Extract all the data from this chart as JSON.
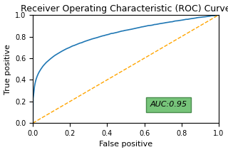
{
  "title": "Receiver Operating Characteristic (ROC) Curve",
  "xlabel": "False positive",
  "ylabel": "True positive",
  "auc_text": "AUC:0.95",
  "roc_color": "#1f77b4",
  "diag_color": "orange",
  "diag_style": "--",
  "xlim": [
    0.0,
    1.0
  ],
  "ylim": [
    0.0,
    1.0
  ],
  "xticks": [
    0.0,
    0.2,
    0.4,
    0.6,
    0.8,
    1.0
  ],
  "yticks": [
    0.0,
    0.2,
    0.4,
    0.6,
    0.8,
    1.0
  ],
  "box_facecolor": "#77c47a",
  "box_edgecolor": "#4a8c4e",
  "title_fontsize": 9,
  "label_fontsize": 8,
  "tick_fontsize": 7,
  "auc_fontsize": 8,
  "fig_width": 3.2,
  "fig_height": 2.14,
  "dpi": 100
}
